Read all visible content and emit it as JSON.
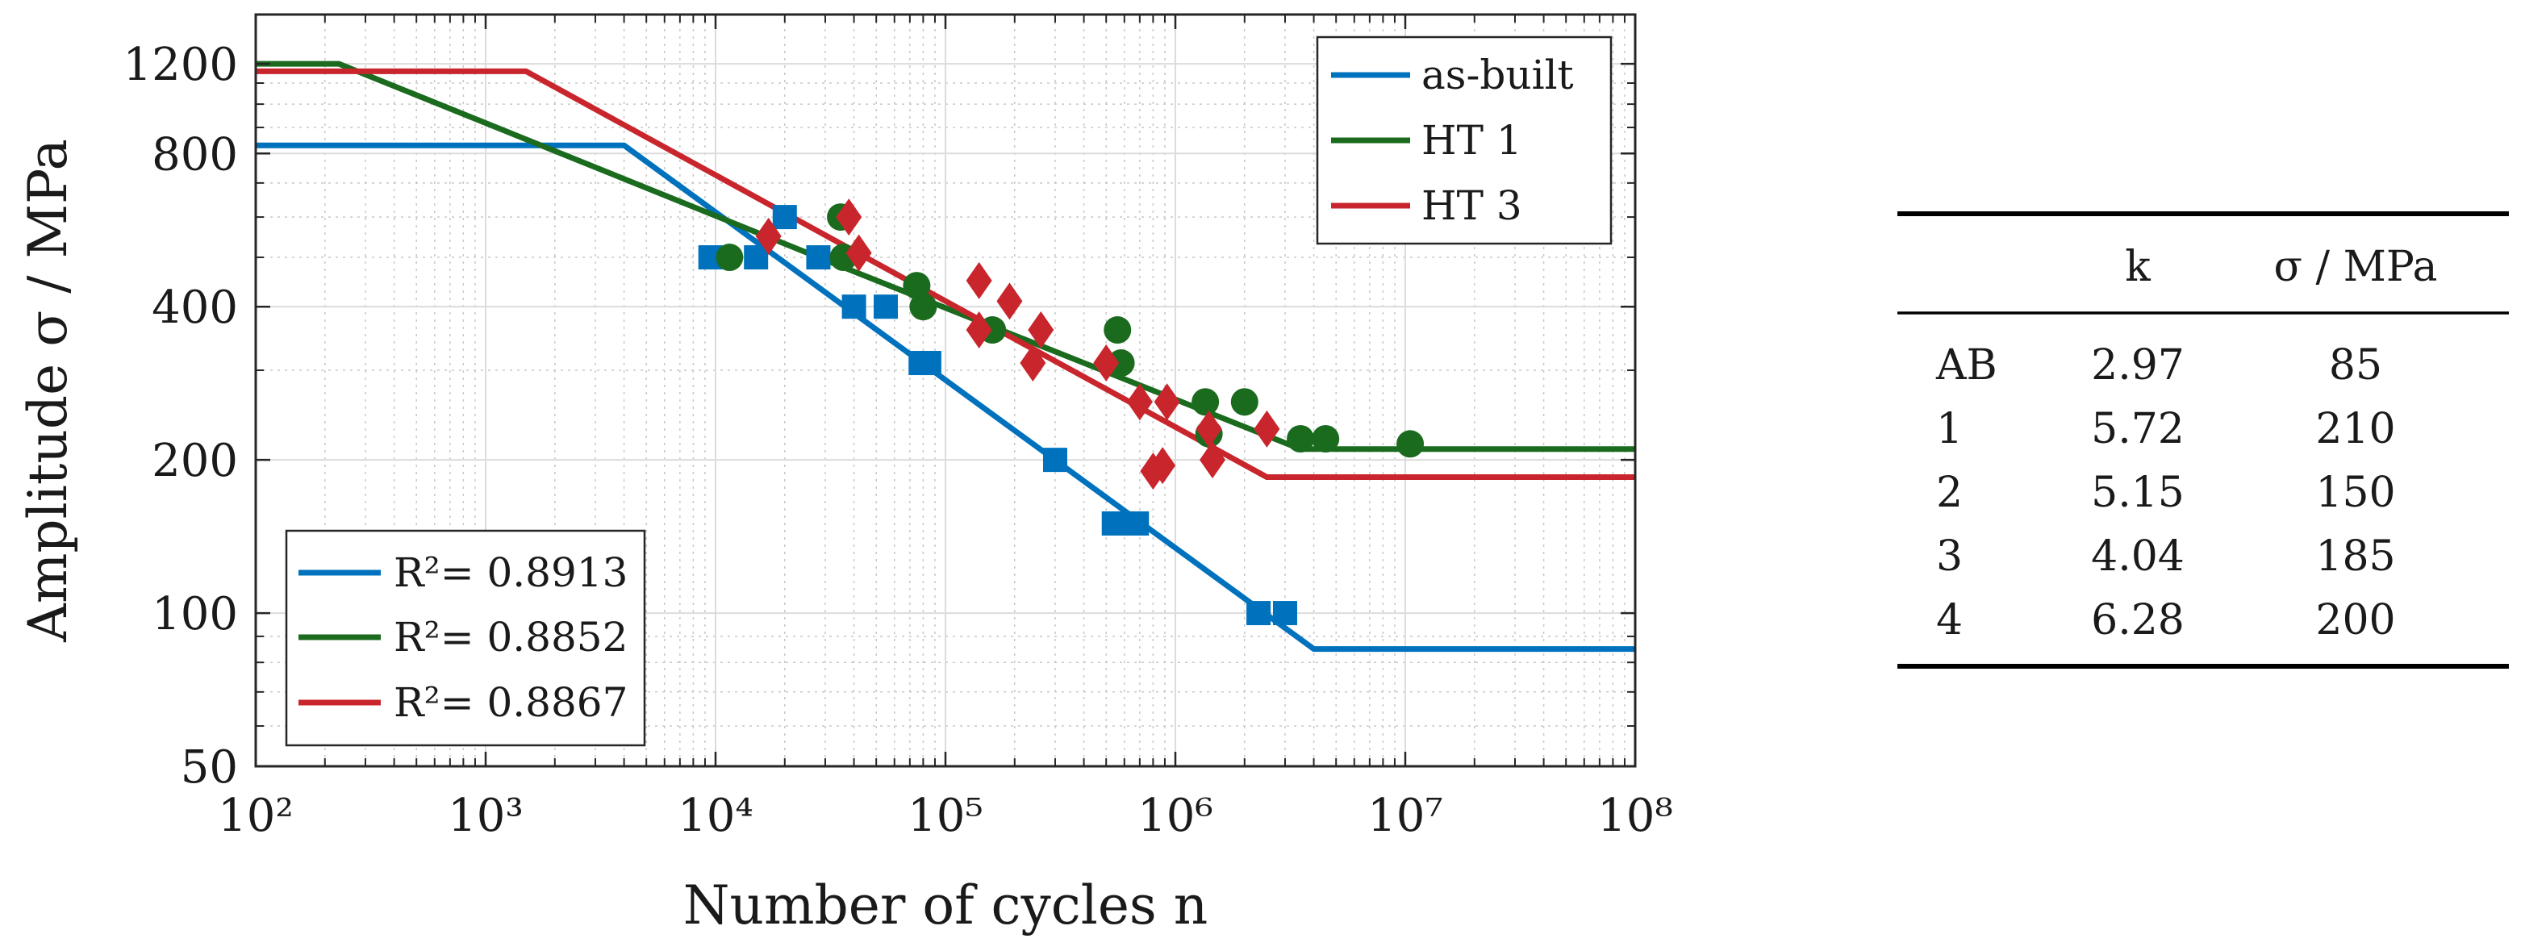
{
  "chart_data": {
    "type": "scatter",
    "xlabel": "Number of cycles n",
    "ylabel": "Amplitude σ / MPa",
    "xscale": "log",
    "yscale": "log",
    "xlim": [
      100,
      100000000
    ],
    "ylim": [
      50,
      1500
    ],
    "x_ticks": [
      {
        "value": 100,
        "label": "10²"
      },
      {
        "value": 1000,
        "label": "10³"
      },
      {
        "value": 10000,
        "label": "10⁴"
      },
      {
        "value": 100000,
        "label": "10⁵"
      },
      {
        "value": 1000000,
        "label": "10⁶"
      },
      {
        "value": 10000000,
        "label": "10⁷"
      },
      {
        "value": 100000000,
        "label": "10⁸"
      }
    ],
    "y_ticks": [
      {
        "value": 50,
        "label": "50"
      },
      {
        "value": 100,
        "label": "100"
      },
      {
        "value": 200,
        "label": "200"
      },
      {
        "value": 400,
        "label": "400"
      },
      {
        "value": 800,
        "label": "800"
      },
      {
        "value": 1200,
        "label": "1200"
      }
    ],
    "grid": true,
    "legend_series_position": "top-right",
    "legend_fit_position": "bottom-left",
    "series": [
      {
        "name": "as-built",
        "color": "#0072BD",
        "marker": "square",
        "fit_r2_label": "R²= 0.8913",
        "fit_line": [
          [
            100,
            830
          ],
          [
            4000,
            830
          ],
          [
            4000000,
            85
          ],
          [
            100000000,
            85
          ]
        ],
        "points": [
          [
            9500,
            500
          ],
          [
            15000,
            500
          ],
          [
            20000,
            600
          ],
          [
            28000,
            500
          ],
          [
            40000,
            400
          ],
          [
            55000,
            400
          ],
          [
            78000,
            310
          ],
          [
            85000,
            310
          ],
          [
            300000,
            200
          ],
          [
            540000,
            150
          ],
          [
            680000,
            150
          ],
          [
            2300000,
            100
          ],
          [
            3000000,
            100
          ]
        ]
      },
      {
        "name": "HT 1",
        "color": "#1B6B1F",
        "marker": "circle",
        "fit_r2_label": "R²= 0.8852",
        "fit_line": [
          [
            100,
            1200
          ],
          [
            230,
            1200
          ],
          [
            28000,
            500
          ],
          [
            3500000,
            210
          ],
          [
            100000000,
            210
          ]
        ],
        "points": [
          [
            11500,
            500
          ],
          [
            35000,
            600
          ],
          [
            36000,
            500
          ],
          [
            75000,
            440
          ],
          [
            80000,
            400
          ],
          [
            160000,
            360
          ],
          [
            560000,
            360
          ],
          [
            580000,
            310
          ],
          [
            1350000,
            260
          ],
          [
            1400000,
            225
          ],
          [
            2000000,
            260
          ],
          [
            3500000,
            220
          ],
          [
            4500000,
            220
          ],
          [
            10500000,
            215
          ]
        ]
      },
      {
        "name": "HT 3",
        "color": "#C8262C",
        "marker": "diamond",
        "fit_r2_label": "R²= 0.8867",
        "fit_line": [
          [
            100,
            1160
          ],
          [
            1500,
            1160
          ],
          [
            2500000,
            185
          ],
          [
            100000000,
            185
          ]
        ],
        "points": [
          [
            17000,
            550
          ],
          [
            38000,
            600
          ],
          [
            42000,
            510
          ],
          [
            140000,
            450
          ],
          [
            140000,
            360
          ],
          [
            190000,
            410
          ],
          [
            240000,
            310
          ],
          [
            260000,
            360
          ],
          [
            500000,
            310
          ],
          [
            700000,
            260
          ],
          [
            800000,
            190
          ],
          [
            880000,
            195
          ],
          [
            920000,
            260
          ],
          [
            1400000,
            230
          ],
          [
            1450000,
            200
          ],
          [
            2500000,
            230
          ]
        ]
      }
    ]
  },
  "table": {
    "headers": [
      "",
      "k",
      "σ / MPa"
    ],
    "rows": [
      [
        "AB",
        "2.97",
        "85"
      ],
      [
        "1",
        "5.72",
        "210"
      ],
      [
        "2",
        "5.15",
        "150"
      ],
      [
        "3",
        "4.04",
        "185"
      ],
      [
        "4",
        "6.28",
        "200"
      ]
    ]
  }
}
